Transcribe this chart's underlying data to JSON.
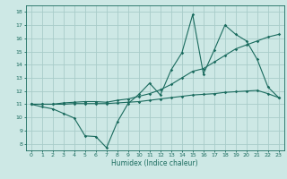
{
  "background_color": "#cde8e5",
  "grid_color": "#a8ccc9",
  "line_color": "#1a6b5e",
  "xlabel": "Humidex (Indice chaleur)",
  "xlim": [
    -0.5,
    23.5
  ],
  "ylim": [
    7.5,
    18.5
  ],
  "yticks": [
    8,
    9,
    10,
    11,
    12,
    13,
    14,
    15,
    16,
    17,
    18
  ],
  "xticks": [
    0,
    1,
    2,
    3,
    4,
    5,
    6,
    7,
    8,
    9,
    10,
    11,
    12,
    13,
    14,
    15,
    16,
    17,
    18,
    19,
    20,
    21,
    22,
    23
  ],
  "series": [
    {
      "x": [
        0,
        1,
        2,
        3,
        4,
        5,
        6,
        7,
        8,
        9,
        10,
        11,
        12,
        13,
        14,
        15,
        16,
        17,
        18,
        19,
        20,
        21,
        22,
        23
      ],
      "y": [
        11,
        10.8,
        10.65,
        10.3,
        9.95,
        8.6,
        8.55,
        7.7,
        9.65,
        11.05,
        11.75,
        12.6,
        11.7,
        13.6,
        14.9,
        17.8,
        13.3,
        15.1,
        17.0,
        16.3,
        15.8,
        14.4,
        12.3,
        11.5
      ]
    },
    {
      "x": [
        0,
        1,
        2,
        3,
        4,
        5,
        6,
        7,
        8,
        9,
        10,
        11,
        12,
        13,
        14,
        15,
        16,
        17,
        18,
        19,
        20,
        21,
        22,
        23
      ],
      "y": [
        11,
        11,
        11,
        11.1,
        11.15,
        11.2,
        11.2,
        11.15,
        11.3,
        11.4,
        11.6,
        11.8,
        12.1,
        12.5,
        13.0,
        13.5,
        13.7,
        14.2,
        14.7,
        15.2,
        15.5,
        15.8,
        16.1,
        16.3
      ]
    },
    {
      "x": [
        0,
        1,
        2,
        3,
        4,
        5,
        6,
        7,
        8,
        9,
        10,
        11,
        12,
        13,
        14,
        15,
        16,
        17,
        18,
        19,
        20,
        21,
        22,
        23
      ],
      "y": [
        11,
        11,
        11,
        11,
        11.05,
        11.05,
        11.05,
        11.05,
        11.1,
        11.15,
        11.2,
        11.3,
        11.4,
        11.5,
        11.6,
        11.7,
        11.75,
        11.8,
        11.9,
        11.95,
        12.0,
        12.05,
        11.8,
        11.5
      ]
    }
  ]
}
